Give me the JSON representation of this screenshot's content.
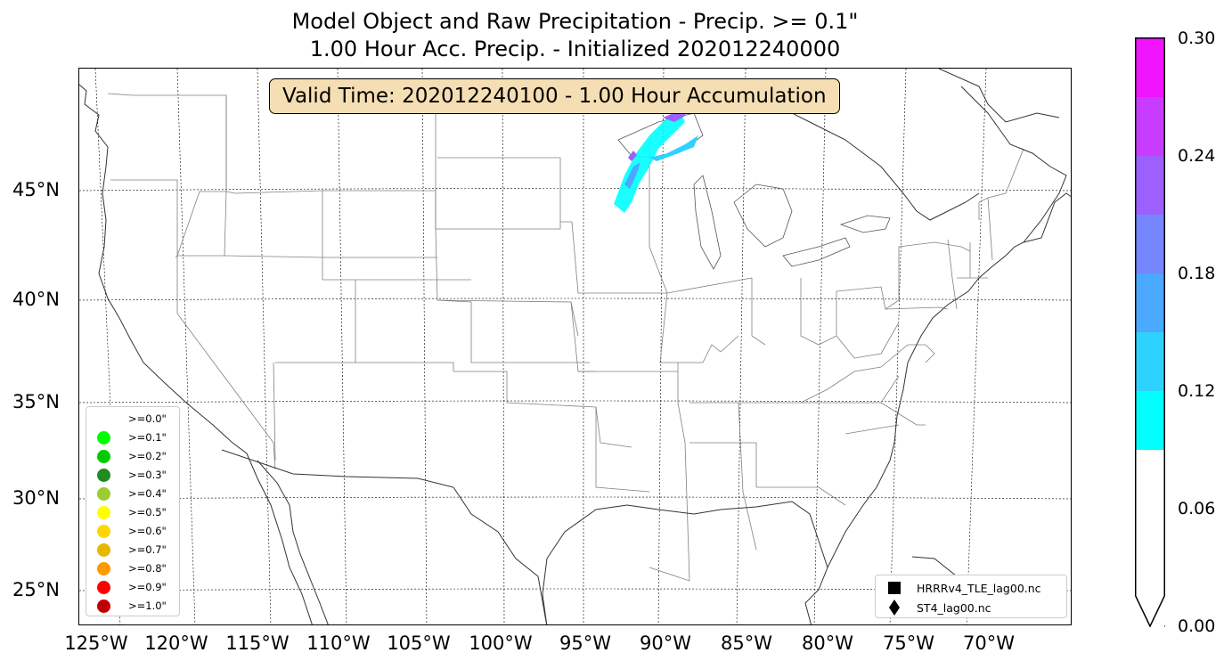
{
  "title": {
    "line1": "Model Object and Raw Precipitation - Precip. >= 0.1\"",
    "line2": "1.00 Hour Acc. Precip. - Initialized 202012240000"
  },
  "valid_time_label": "Valid Time: 202012240100 - 1.00 Hour Accumulation",
  "map": {
    "projection": "lambert-conformal-conus",
    "lat_ticks": [
      "45°N",
      "40°N",
      "35°N",
      "30°N",
      "25°N"
    ],
    "lon_ticks": [
      "125°W",
      "120°W",
      "115°W",
      "110°W",
      "105°W",
      "100°W",
      "95°W",
      "90°W",
      "85°W",
      "80°W",
      "75°W",
      "70°W"
    ],
    "grid": "dotted",
    "coastline_color": "#333333",
    "state_border_color": "#808080",
    "precip_region": "Minnesota / Wisconsin / Lake Superior shore"
  },
  "threshold_legend": {
    "items": [
      {
        "label": ">=0.0\"",
        "color": "#ffffff"
      },
      {
        "label": ">=0.1\"",
        "color": "#00ff00"
      },
      {
        "label": ">=0.2\"",
        "color": "#00cc00"
      },
      {
        "label": ">=0.3\"",
        "color": "#228b22"
      },
      {
        "label": ">=0.4\"",
        "color": "#9acd32"
      },
      {
        "label": ">=0.5\"",
        "color": "#ffff00"
      },
      {
        "label": ">=0.6\"",
        "color": "#ffd700"
      },
      {
        "label": ">=0.7\"",
        "color": "#e6b800"
      },
      {
        "label": ">=0.8\"",
        "color": "#ff9900"
      },
      {
        "label": ">=0.9\"",
        "color": "#ff0000"
      },
      {
        "label": ">=1.0\"",
        "color": "#c00000"
      }
    ]
  },
  "model_legend": {
    "items": [
      {
        "label": "HRRRv4_TLE_lag00.nc",
        "icon": "square-marker-icon"
      },
      {
        "label": "ST4_lag00.nc",
        "icon": "diamond-marker-icon"
      }
    ]
  },
  "colorbar": {
    "ticks": [
      "0.30",
      "0.24",
      "0.18",
      "0.12",
      "0.06",
      "0.00"
    ],
    "extend": "min",
    "bins": [
      {
        "from": 0.0,
        "to": 0.09,
        "color": "#ffffff"
      },
      {
        "from": 0.09,
        "to": 0.12,
        "color": "#00ffff"
      },
      {
        "from": 0.12,
        "to": 0.15,
        "color": "#2ed2ff"
      },
      {
        "from": 0.15,
        "to": 0.18,
        "color": "#4aa8ff"
      },
      {
        "from": 0.18,
        "to": 0.21,
        "color": "#7586ff"
      },
      {
        "from": 0.21,
        "to": 0.24,
        "color": "#9e5fff"
      },
      {
        "from": 0.24,
        "to": 0.27,
        "color": "#c83cff"
      },
      {
        "from": 0.27,
        "to": 0.3,
        "color": "#f014ff"
      }
    ]
  }
}
